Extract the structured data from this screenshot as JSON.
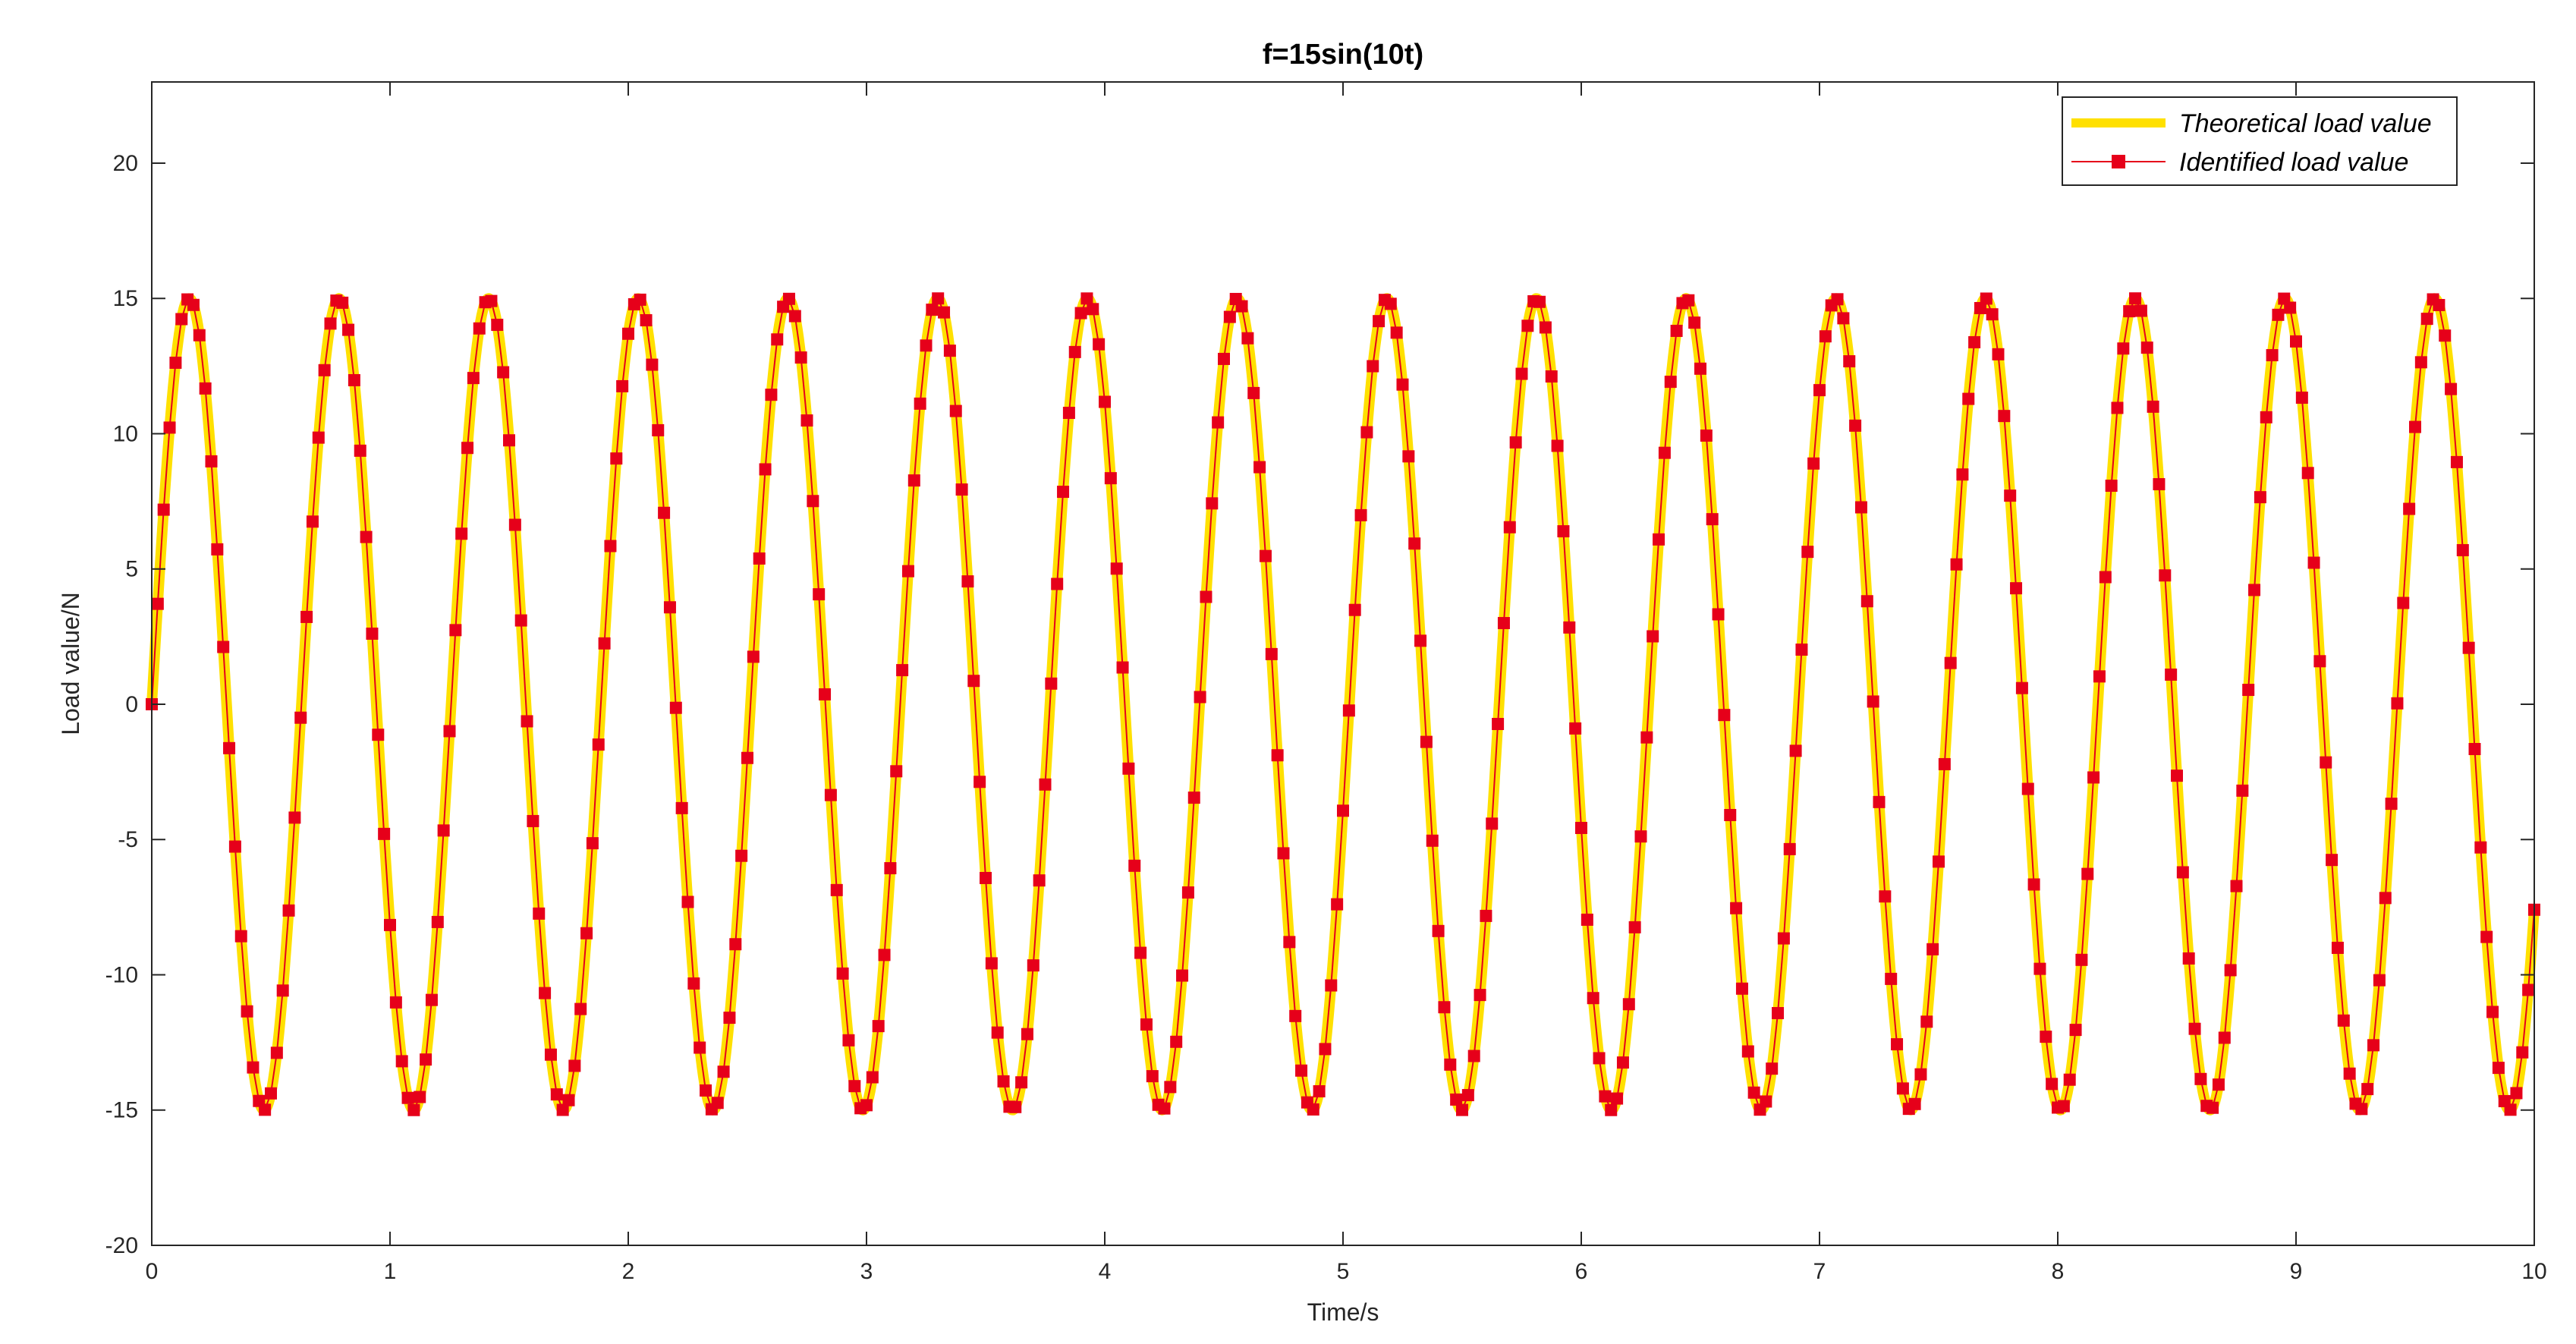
{
  "chart_data": {
    "type": "line",
    "title": "f=15sin(10t)",
    "xlabel": "Time/s",
    "ylabel": "Load value/N",
    "xlim": [
      0,
      10
    ],
    "ylim": [
      -20,
      23
    ],
    "x_ticks": [
      0,
      1,
      2,
      3,
      4,
      5,
      6,
      7,
      8,
      9,
      10
    ],
    "y_ticks": [
      -20,
      -15,
      -10,
      -5,
      0,
      5,
      10,
      15,
      20
    ],
    "grid": false,
    "legend_position": "top-right",
    "series": [
      {
        "name": "Theoretical load value",
        "style": "line",
        "color": "#ffe000",
        "function": "15*sin(10*t)",
        "amplitude": 15,
        "angular_frequency": 10,
        "t_range": [
          0,
          10
        ],
        "sample_step": 0.005
      },
      {
        "name": "Identified load value",
        "style": "line-with-square-markers",
        "color": "#e6001a",
        "function": "15*sin(10*t)",
        "amplitude": 15,
        "angular_frequency": 10,
        "t_range": [
          0,
          10
        ],
        "sample_step": 0.025
      }
    ]
  }
}
